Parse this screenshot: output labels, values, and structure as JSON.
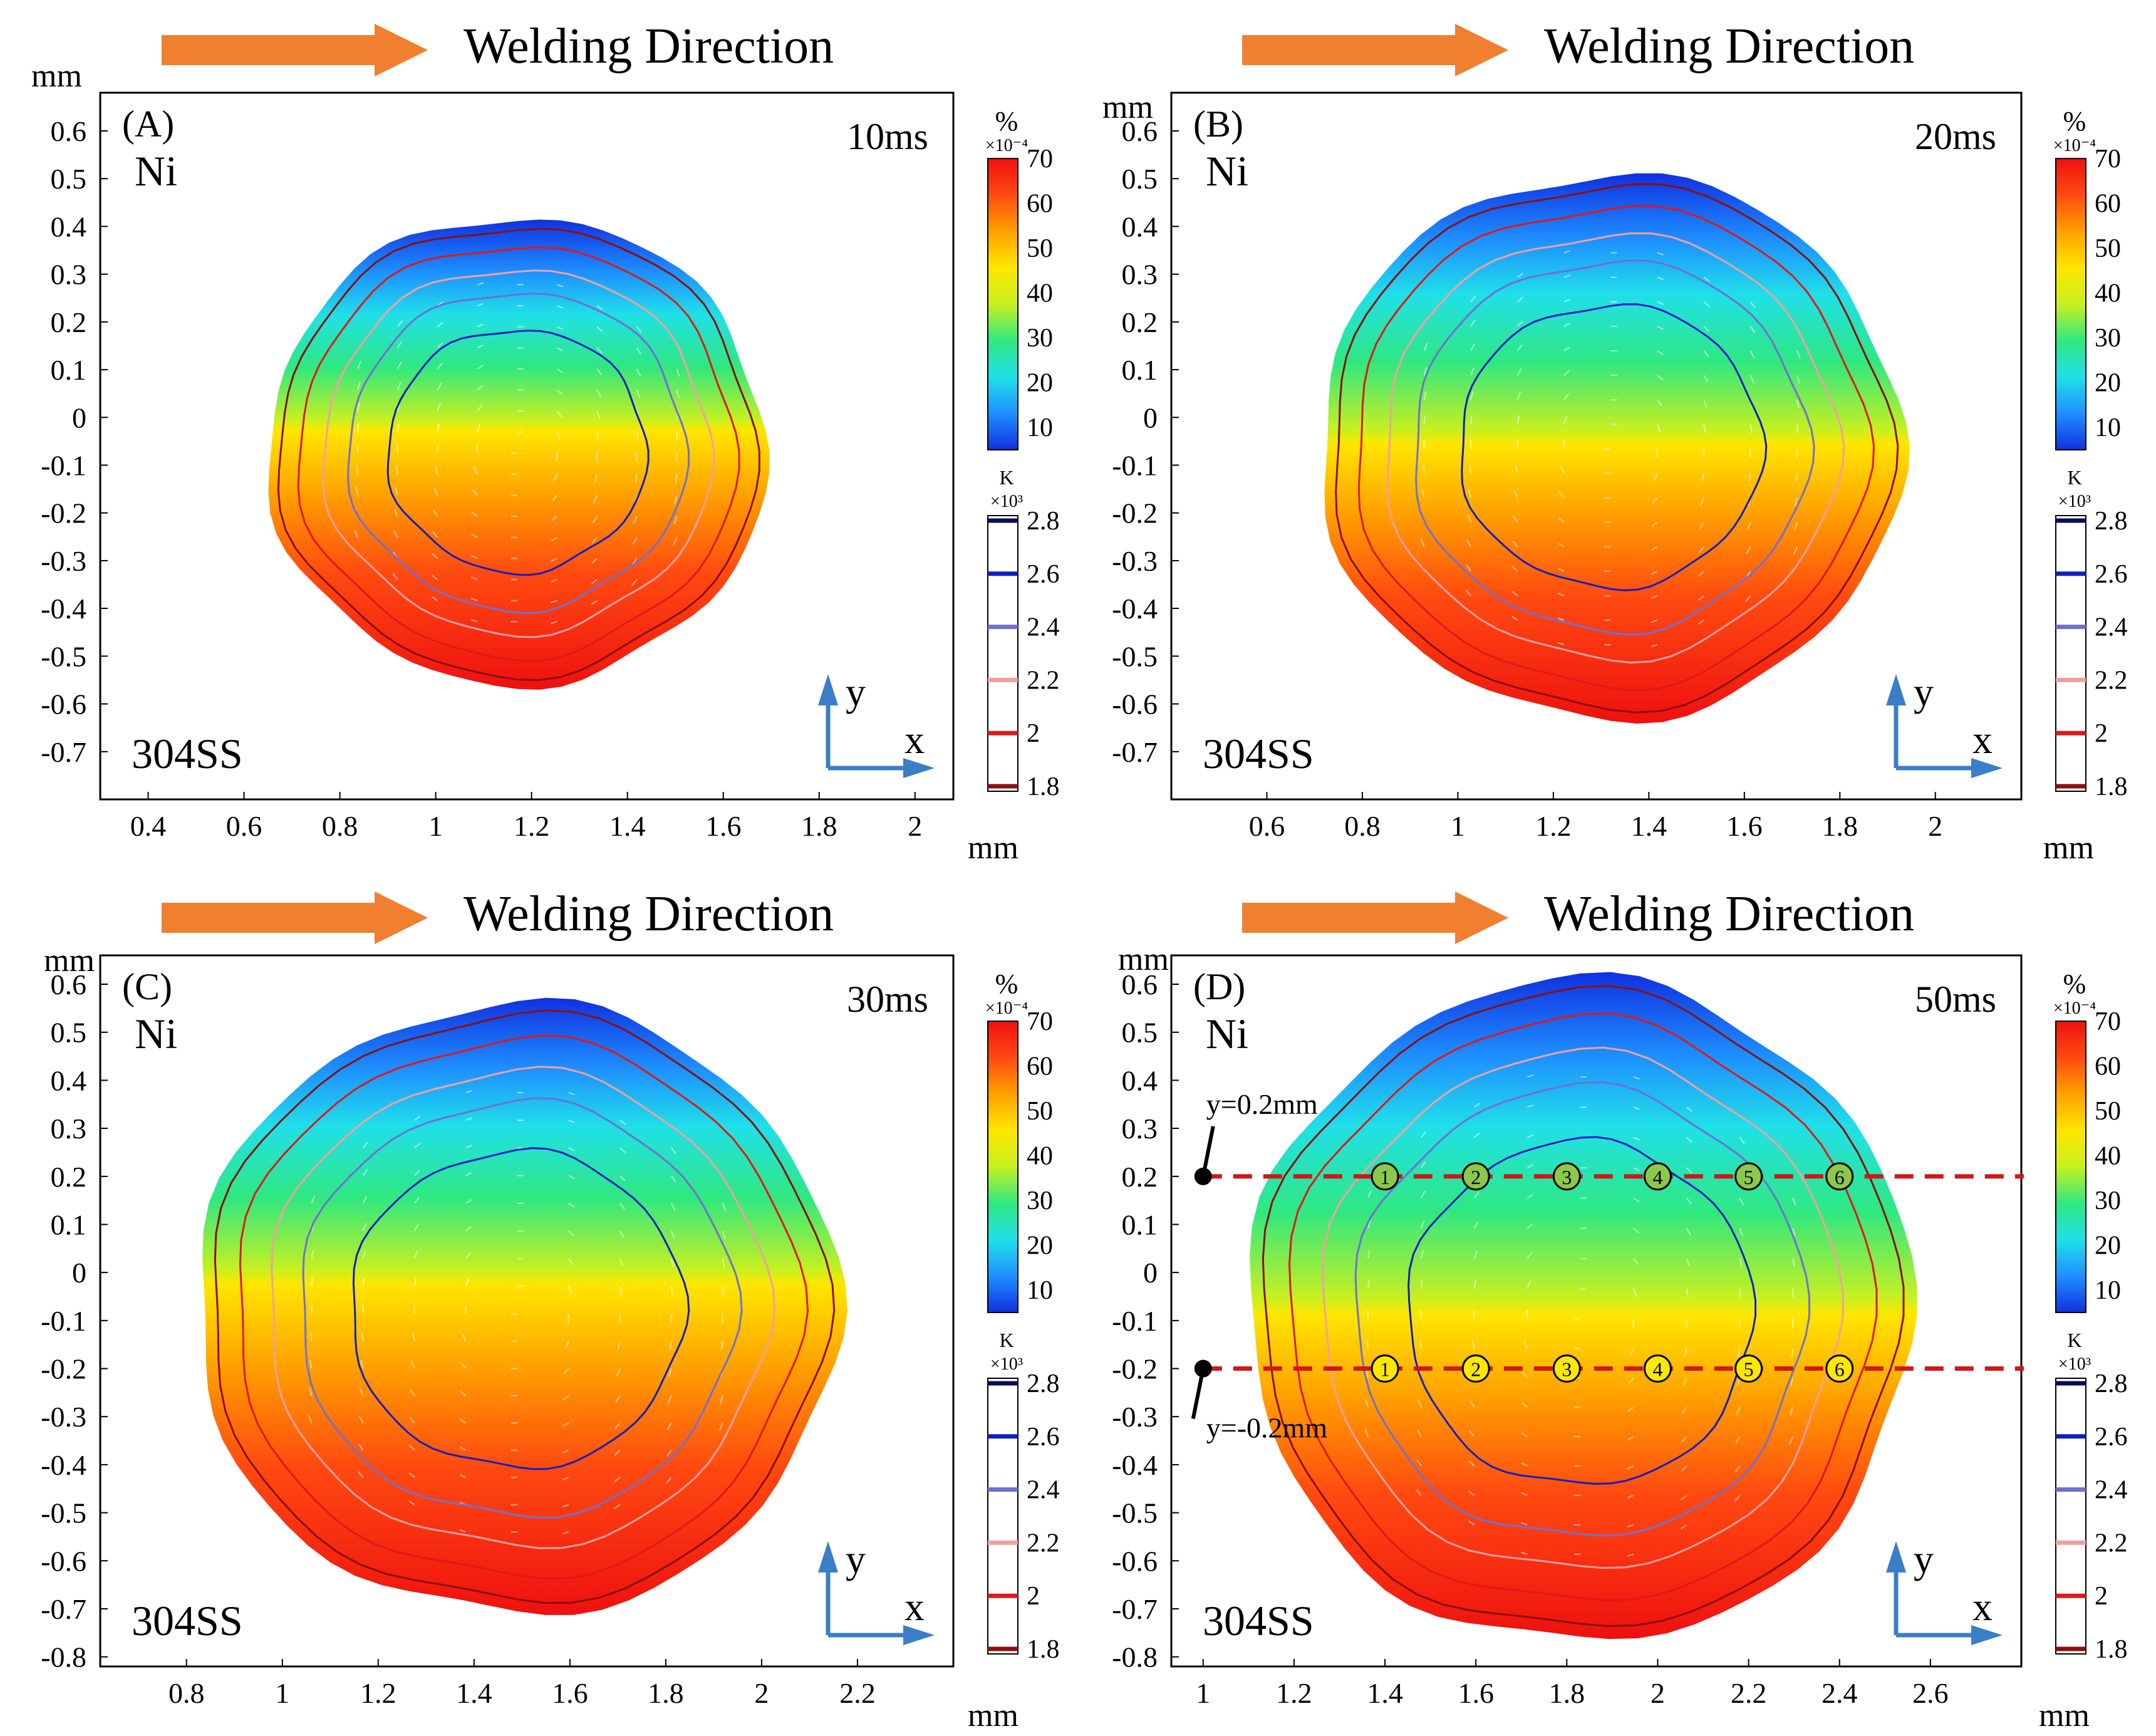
{
  "figure": {
    "arrow_color": "#f08030",
    "axis_color": "#000000",
    "coord_arrow_color": "#3a7ec8"
  },
  "colorbar_concentration": {
    "unit": "%",
    "multiplier": "×10⁻⁴",
    "ticks": [
      "70",
      "60",
      "50",
      "40",
      "30",
      "20",
      "10"
    ],
    "range": [
      5,
      70
    ],
    "colors": [
      "#1030e0",
      "#1e90ff",
      "#20e0e8",
      "#30e880",
      "#c8f020",
      "#ffe600",
      "#ffa000",
      "#ff4a10",
      "#ee1010"
    ]
  },
  "colorbar_temperature": {
    "unit": "K",
    "multiplier": "×10³",
    "ticks": [
      "2.8",
      "2.6",
      "2.4",
      "2.2",
      "2",
      "1.8"
    ],
    "line_colors": [
      "#0a0a5a",
      "#1020c0",
      "#7070d0",
      "#f0a0a0",
      "#e01818",
      "#8a1010"
    ]
  },
  "chart_data": [
    {
      "type": "heatmap",
      "panel": "(A)",
      "title": "Welding Direction",
      "time_label": "10ms",
      "material_top": "Ni",
      "material_bottom": "304SS",
      "xlabel": "mm",
      "ylabel": "mm",
      "xlim": [
        0.3,
        2.08
      ],
      "ylim": [
        -0.8,
        0.68
      ],
      "xticks": [
        0.4,
        0.6,
        0.8,
        1,
        1.2,
        1.4,
        1.6,
        1.8,
        2
      ],
      "xtick_labels": [
        "0.4",
        "0.6",
        "0.8",
        "1",
        "1.2",
        "1.4",
        "1.6",
        "1.8",
        "2"
      ],
      "yticks": [
        0.6,
        0.5,
        0.4,
        0.3,
        0.2,
        0.1,
        0,
        -0.1,
        -0.2,
        -0.3,
        -0.4,
        -0.5,
        -0.6,
        -0.7
      ],
      "ytick_labels": [
        "0.6",
        "0.5",
        "0.4",
        "0.3",
        "0.2",
        "0.1",
        "0",
        "-0.1",
        "-0.2",
        "-0.3",
        "-0.4",
        "-0.5",
        "-0.6",
        "-0.7"
      ],
      "pool": {
        "cx": 1.17,
        "cy": -0.07,
        "rx": 0.52,
        "ry_top": 0.49,
        "ry_bottom": 0.49,
        "interface_y": -0.02
      },
      "isotherms_K": [
        1800,
        2000,
        2200,
        2400,
        2600
      ]
    },
    {
      "type": "heatmap",
      "panel": "(B)",
      "title": "Welding Direction",
      "time_label": "20ms",
      "material_top": "Ni",
      "material_bottom": "304SS",
      "xlabel": "mm",
      "ylabel": "mm",
      "xlim": [
        0.4,
        2.18
      ],
      "ylim": [
        -0.8,
        0.68
      ],
      "xticks": [
        0.6,
        0.8,
        1,
        1.2,
        1.4,
        1.6,
        1.8,
        2
      ],
      "xtick_labels": [
        "0.6",
        "0.8",
        "1",
        "1.2",
        "1.4",
        "1.6",
        "1.8",
        "2"
      ],
      "yticks": [
        0.6,
        0.5,
        0.4,
        0.3,
        0.2,
        0.1,
        0,
        -0.1,
        -0.2,
        -0.3,
        -0.4,
        -0.5,
        -0.6,
        -0.7
      ],
      "ytick_labels": [
        "0.6",
        "0.5",
        "0.4",
        "0.3",
        "0.2",
        "0.1",
        "0",
        "-0.1",
        "-0.2",
        "-0.3",
        "-0.4",
        "-0.5",
        "-0.6",
        "-0.7"
      ],
      "pool": {
        "cx": 1.32,
        "cy": -0.06,
        "rx": 0.61,
        "ry_top": 0.57,
        "ry_bottom": 0.57,
        "interface_y": -0.05
      },
      "isotherms_K": [
        1800,
        2000,
        2200,
        2400,
        2600
      ]
    },
    {
      "type": "heatmap",
      "panel": "(C)",
      "title": "Welding Direction",
      "time_label": "30ms",
      "material_top": "Ni",
      "material_bottom": "304SS",
      "xlabel": "mm",
      "ylabel": "mm",
      "xlim": [
        0.62,
        2.4
      ],
      "ylim": [
        -0.82,
        0.66
      ],
      "xticks": [
        0.8,
        1,
        1.2,
        1.4,
        1.6,
        1.8,
        2,
        2.2
      ],
      "xtick_labels": [
        "0.8",
        "1",
        "1.2",
        "1.4",
        "1.6",
        "1.8",
        "2",
        "2.2"
      ],
      "yticks": [
        0.6,
        0.5,
        0.4,
        0.3,
        0.2,
        0.1,
        0,
        -0.1,
        -0.2,
        -0.3,
        -0.4,
        -0.5,
        -0.6,
        -0.7,
        -0.8
      ],
      "ytick_labels": [
        "0.6",
        "0.5",
        "0.4",
        "0.3",
        "0.2",
        "0.1",
        "0",
        "-0.1",
        "-0.2",
        "-0.3",
        "-0.4",
        "-0.5",
        "-0.6",
        "-0.7",
        "-0.8"
      ],
      "pool": {
        "cx": 1.49,
        "cy": -0.08,
        "rx": 0.67,
        "ry_top": 0.64,
        "ry_bottom": 0.63,
        "interface_y": -0.03
      },
      "isotherms_K": [
        1800,
        2000,
        2200,
        2400,
        2600
      ]
    },
    {
      "type": "heatmap",
      "panel": "(D)",
      "title": "Welding Direction",
      "time_label": "50ms",
      "material_top": "Ni",
      "material_bottom": "304SS",
      "xlabel": "mm",
      "ylabel": "mm",
      "xlim": [
        0.93,
        2.8
      ],
      "ylim": [
        -0.82,
        0.66
      ],
      "xticks": [
        1,
        1.2,
        1.4,
        1.6,
        1.8,
        2,
        2.2,
        2.4,
        2.6
      ],
      "xtick_labels": [
        "1",
        "1.2",
        "1.4",
        "1.6",
        "1.8",
        "2",
        "2.2",
        "2.4",
        "2.6"
      ],
      "yticks": [
        0.6,
        0.5,
        0.4,
        0.3,
        0.2,
        0.1,
        0,
        -0.1,
        -0.2,
        -0.3,
        -0.4,
        -0.5,
        -0.6,
        -0.7,
        -0.8
      ],
      "ytick_labels": [
        "0.6",
        "0.5",
        "0.4",
        "0.3",
        "0.2",
        "0.1",
        "0",
        "-0.1",
        "-0.2",
        "-0.3",
        "-0.4",
        "-0.5",
        "-0.6",
        "-0.7",
        "-0.8"
      ],
      "pool": {
        "cx": 1.83,
        "cy": -0.09,
        "rx": 0.73,
        "ry_top": 0.7,
        "ry_bottom": 0.68,
        "interface_y": -0.1
      },
      "isotherms_K": [
        1800,
        2000,
        2200,
        2400,
        2600
      ],
      "sample_lines": [
        {
          "label": "y=0.2mm",
          "y": 0.2,
          "points_x": [
            1.4,
            1.6,
            1.8,
            2.0,
            2.2,
            2.4
          ],
          "point_labels": [
            "1",
            "2",
            "3",
            "4",
            "5",
            "6"
          ],
          "marker_color": "#8cc84b"
        },
        {
          "label": "y=-0.2mm",
          "y": -0.2,
          "points_x": [
            1.4,
            1.6,
            1.8,
            2.0,
            2.2,
            2.4
          ],
          "point_labels": [
            "1",
            "2",
            "3",
            "4",
            "5",
            "6"
          ],
          "marker_color": "#ffe800"
        }
      ]
    }
  ]
}
